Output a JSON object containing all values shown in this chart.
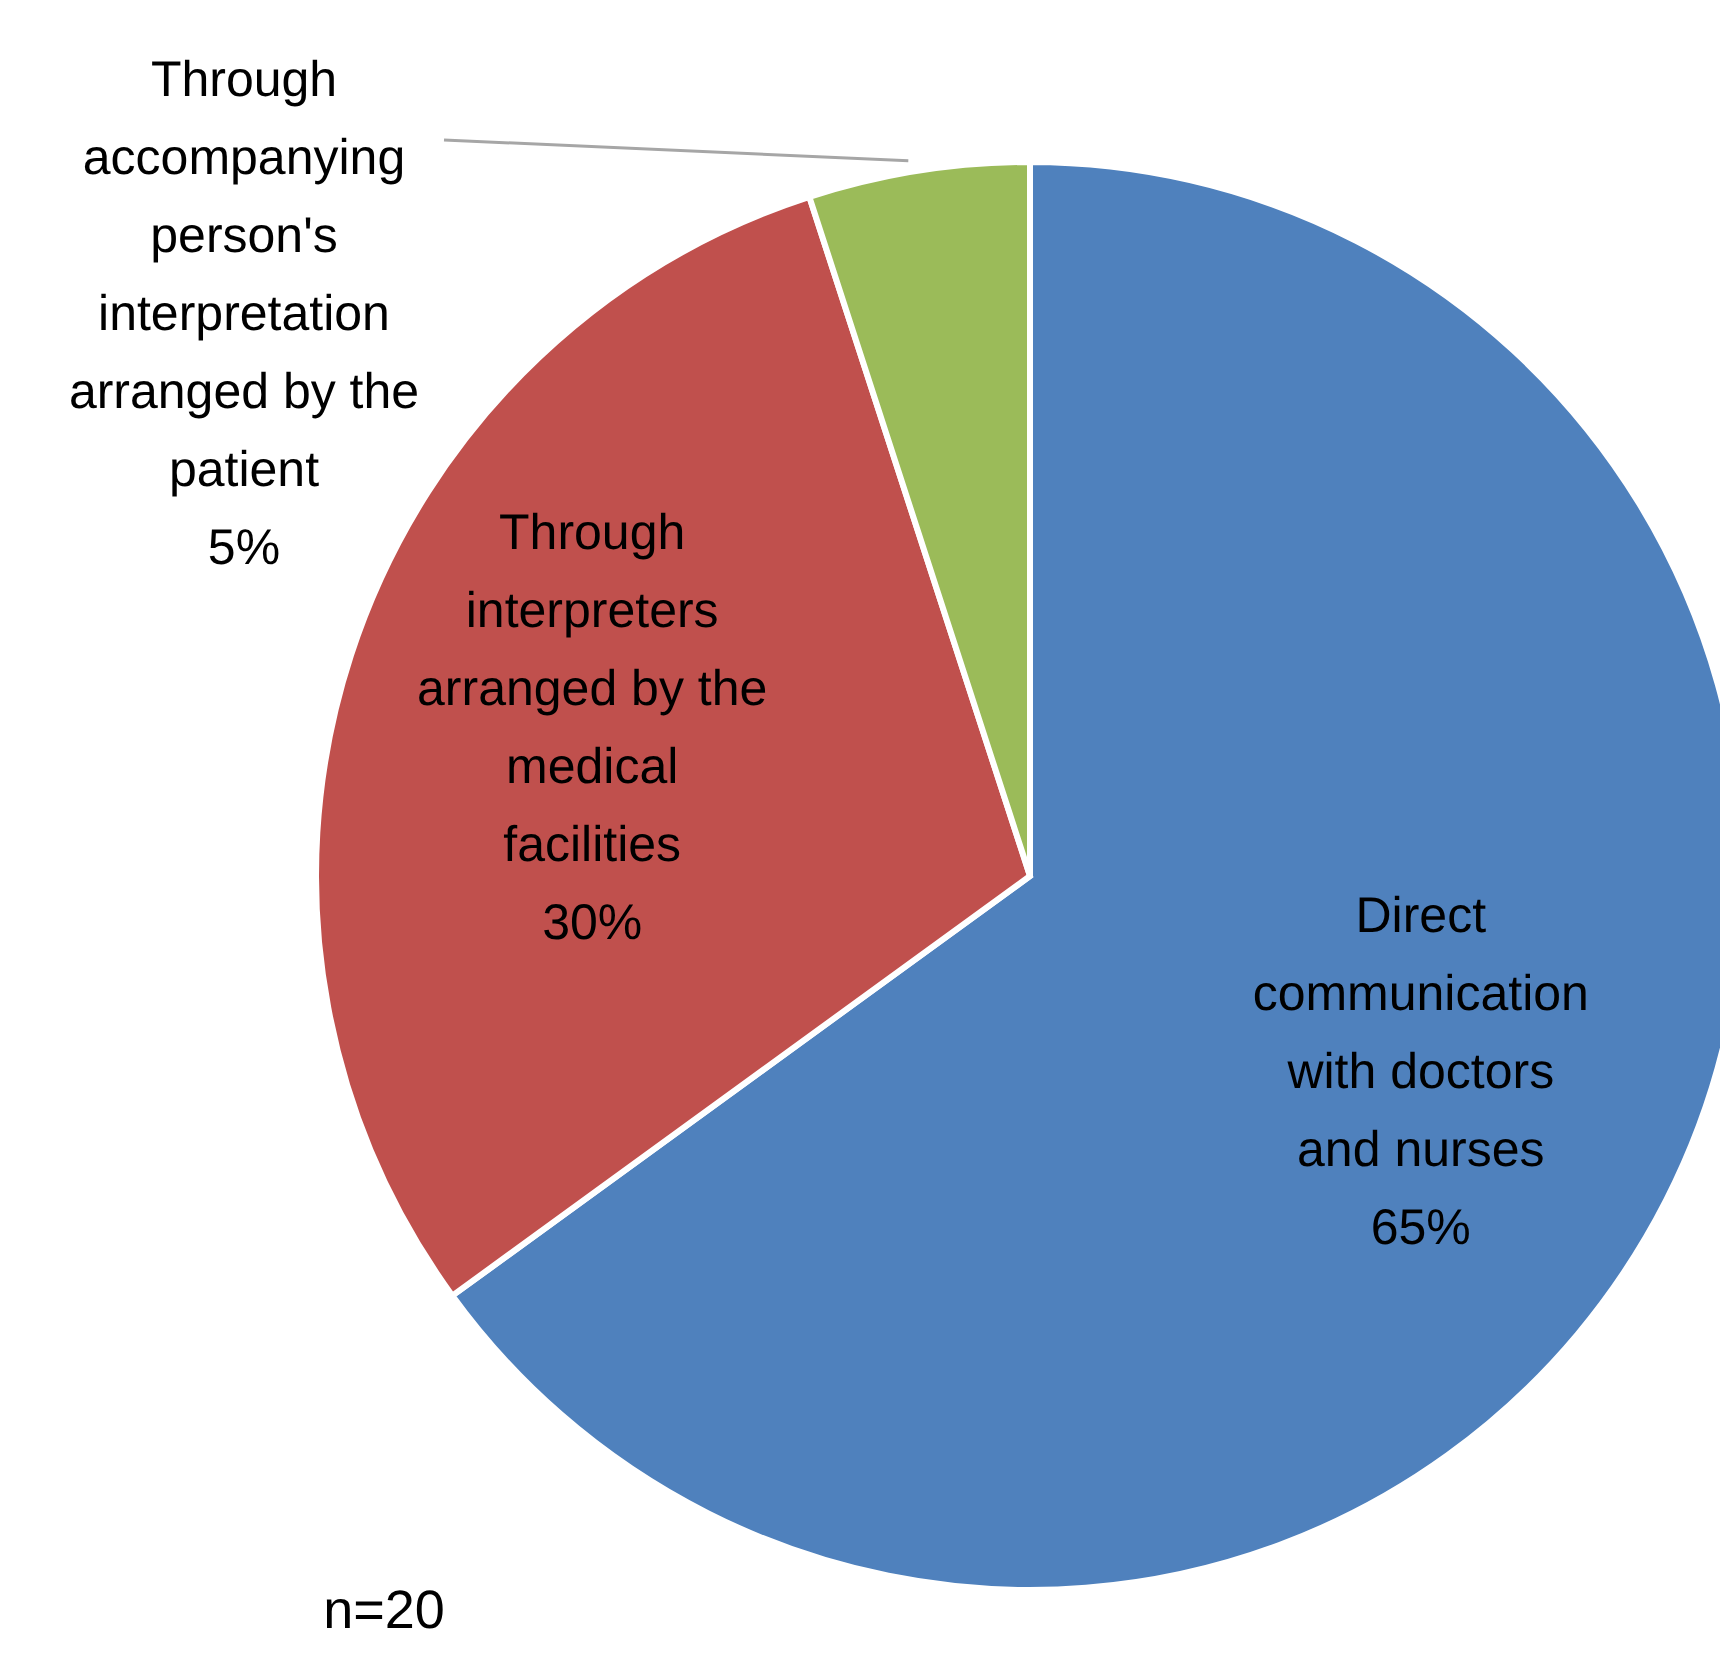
{
  "chart_data": {
    "type": "pie",
    "categories": [
      "Direct communication with doctors and nurses",
      "Through interpreters arranged by the medical facilities",
      "Through accompanying person's interpretation arranged by the patient"
    ],
    "values": [
      65,
      30,
      5
    ],
    "colors": [
      "#4f81bd",
      "#c0504d",
      "#9bbb59"
    ],
    "value_labels": [
      "65%",
      "30%",
      "5%"
    ],
    "annotations": [
      "n=20"
    ]
  }
}
